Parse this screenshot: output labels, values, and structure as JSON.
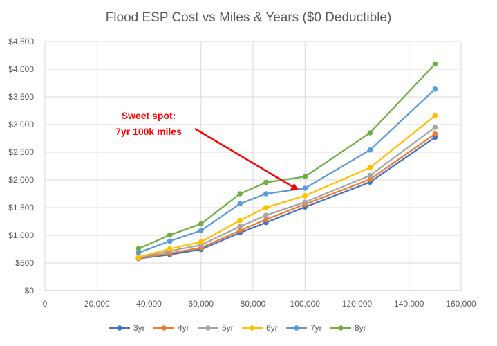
{
  "chart_data": {
    "type": "line",
    "title": "Flood ESP Cost vs Miles & Years ($0 Deductible)",
    "x": [
      36000,
      48000,
      60000,
      75000,
      85000,
      100000,
      125000,
      150000
    ],
    "xlim": [
      0,
      160000
    ],
    "ylim": [
      0,
      4500
    ],
    "xticks": [
      0,
      20000,
      40000,
      60000,
      80000,
      100000,
      120000,
      140000,
      160000
    ],
    "yticks": [
      0,
      500,
      1000,
      1500,
      2000,
      2500,
      3000,
      3500,
      4000,
      4500
    ],
    "xtick_labels": [
      "0",
      "20,000",
      "40,000",
      "60,000",
      "80,000",
      "100,000",
      "120,000",
      "140,000",
      "160,000"
    ],
    "ytick_labels": [
      "$0",
      "$500",
      "$1,000",
      "$1,500",
      "$2,000",
      "$2,500",
      "$3,000",
      "$3,500",
      "$4,000",
      "$4,500"
    ],
    "grid": true,
    "legend_position": "bottom",
    "series": [
      {
        "name": "3yr",
        "color": "#4472c4",
        "values": [
          580,
          650,
          745,
          1045,
          1230,
          1510,
          1960,
          2770
        ]
      },
      {
        "name": "4yr",
        "color": "#ed7d31",
        "values": [
          585,
          675,
          775,
          1085,
          1285,
          1560,
          2010,
          2830
        ]
      },
      {
        "name": "5yr",
        "color": "#a5a5a5",
        "values": [
          595,
          715,
          825,
          1160,
          1360,
          1600,
          2080,
          2950
        ]
      },
      {
        "name": "6yr",
        "color": "#ffc000",
        "values": [
          605,
          755,
          880,
          1270,
          1500,
          1715,
          2220,
          3160
        ]
      },
      {
        "name": "7yr",
        "color": "#5b9bd5",
        "values": [
          685,
          895,
          1085,
          1570,
          1750,
          1850,
          2540,
          3640
        ]
      },
      {
        "name": "8yr",
        "color": "#70ad47",
        "values": [
          760,
          1005,
          1205,
          1750,
          1955,
          2060,
          2850,
          4095
        ]
      }
    ],
    "annotation": {
      "line1": "Sweet spot:",
      "line2": "7yr 100k miles",
      "color": "#ff0000",
      "target": {
        "x": 100000,
        "y": 1850
      }
    }
  }
}
